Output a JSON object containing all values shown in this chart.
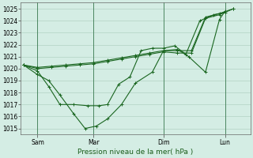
{
  "xlabel": "Pression niveau de la mer( hPa )",
  "ylim": [
    1014.5,
    1025.5
  ],
  "yticks": [
    1015,
    1016,
    1017,
    1018,
    1019,
    1020,
    1021,
    1022,
    1023,
    1024,
    1025
  ],
  "bg_color": "#d4ede4",
  "grid_color": "#aaccbb",
  "line_color": "#1a6620",
  "xlim": [
    -0.1,
    8.1
  ],
  "xtick_positions": [
    0.5,
    2.5,
    5.0,
    7.2
  ],
  "xtick_labels": [
    "Sam",
    "Mar",
    "Dim",
    "Lun"
  ],
  "vline_positions": [
    0.5,
    2.5,
    5.0,
    7.2
  ],
  "series1_x": [
    0.0,
    0.5,
    0.9,
    1.3,
    1.8,
    2.3,
    2.7,
    3.0,
    3.4,
    3.8,
    4.2,
    4.6,
    5.0,
    5.4,
    5.8,
    6.3,
    6.8,
    7.2
  ],
  "series1_y": [
    1020.3,
    1019.8,
    1018.5,
    1017.0,
    1017.0,
    1016.9,
    1016.9,
    1017.0,
    1018.7,
    1019.3,
    1021.5,
    1021.7,
    1021.7,
    1021.9,
    1021.2,
    1024.0,
    1024.5,
    1024.7
  ],
  "series2_x": [
    0.0,
    0.5,
    0.9,
    1.3,
    1.8,
    2.2,
    2.6,
    3.0,
    3.5,
    4.0,
    4.6,
    5.0,
    5.5,
    5.9,
    6.5,
    7.0,
    7.2
  ],
  "series2_y": [
    1020.3,
    1019.5,
    1019.0,
    1017.8,
    1016.2,
    1015.0,
    1015.2,
    1015.8,
    1017.0,
    1018.8,
    1019.7,
    1021.5,
    1021.6,
    1021.0,
    1019.7,
    1024.1,
    1024.8
  ],
  "series3_x": [
    0.0,
    0.5,
    1.0,
    1.5,
    2.0,
    2.5,
    3.0,
    3.5,
    4.0,
    4.5,
    5.0,
    5.5,
    6.0,
    6.5,
    7.0,
    7.5
  ],
  "series3_y": [
    1020.3,
    1020.1,
    1020.2,
    1020.3,
    1020.4,
    1020.5,
    1020.7,
    1020.9,
    1021.1,
    1021.3,
    1021.5,
    1021.5,
    1021.5,
    1024.3,
    1024.6,
    1025.0
  ],
  "series4_x": [
    0.0,
    0.5,
    1.0,
    1.5,
    2.0,
    2.5,
    3.0,
    3.5,
    4.0,
    4.5,
    5.0,
    5.5,
    6.0,
    6.5,
    7.0,
    7.5
  ],
  "series4_y": [
    1020.3,
    1020.0,
    1020.1,
    1020.2,
    1020.3,
    1020.4,
    1020.6,
    1020.8,
    1021.0,
    1021.2,
    1021.4,
    1021.3,
    1021.3,
    1024.2,
    1024.5,
    1025.0
  ]
}
